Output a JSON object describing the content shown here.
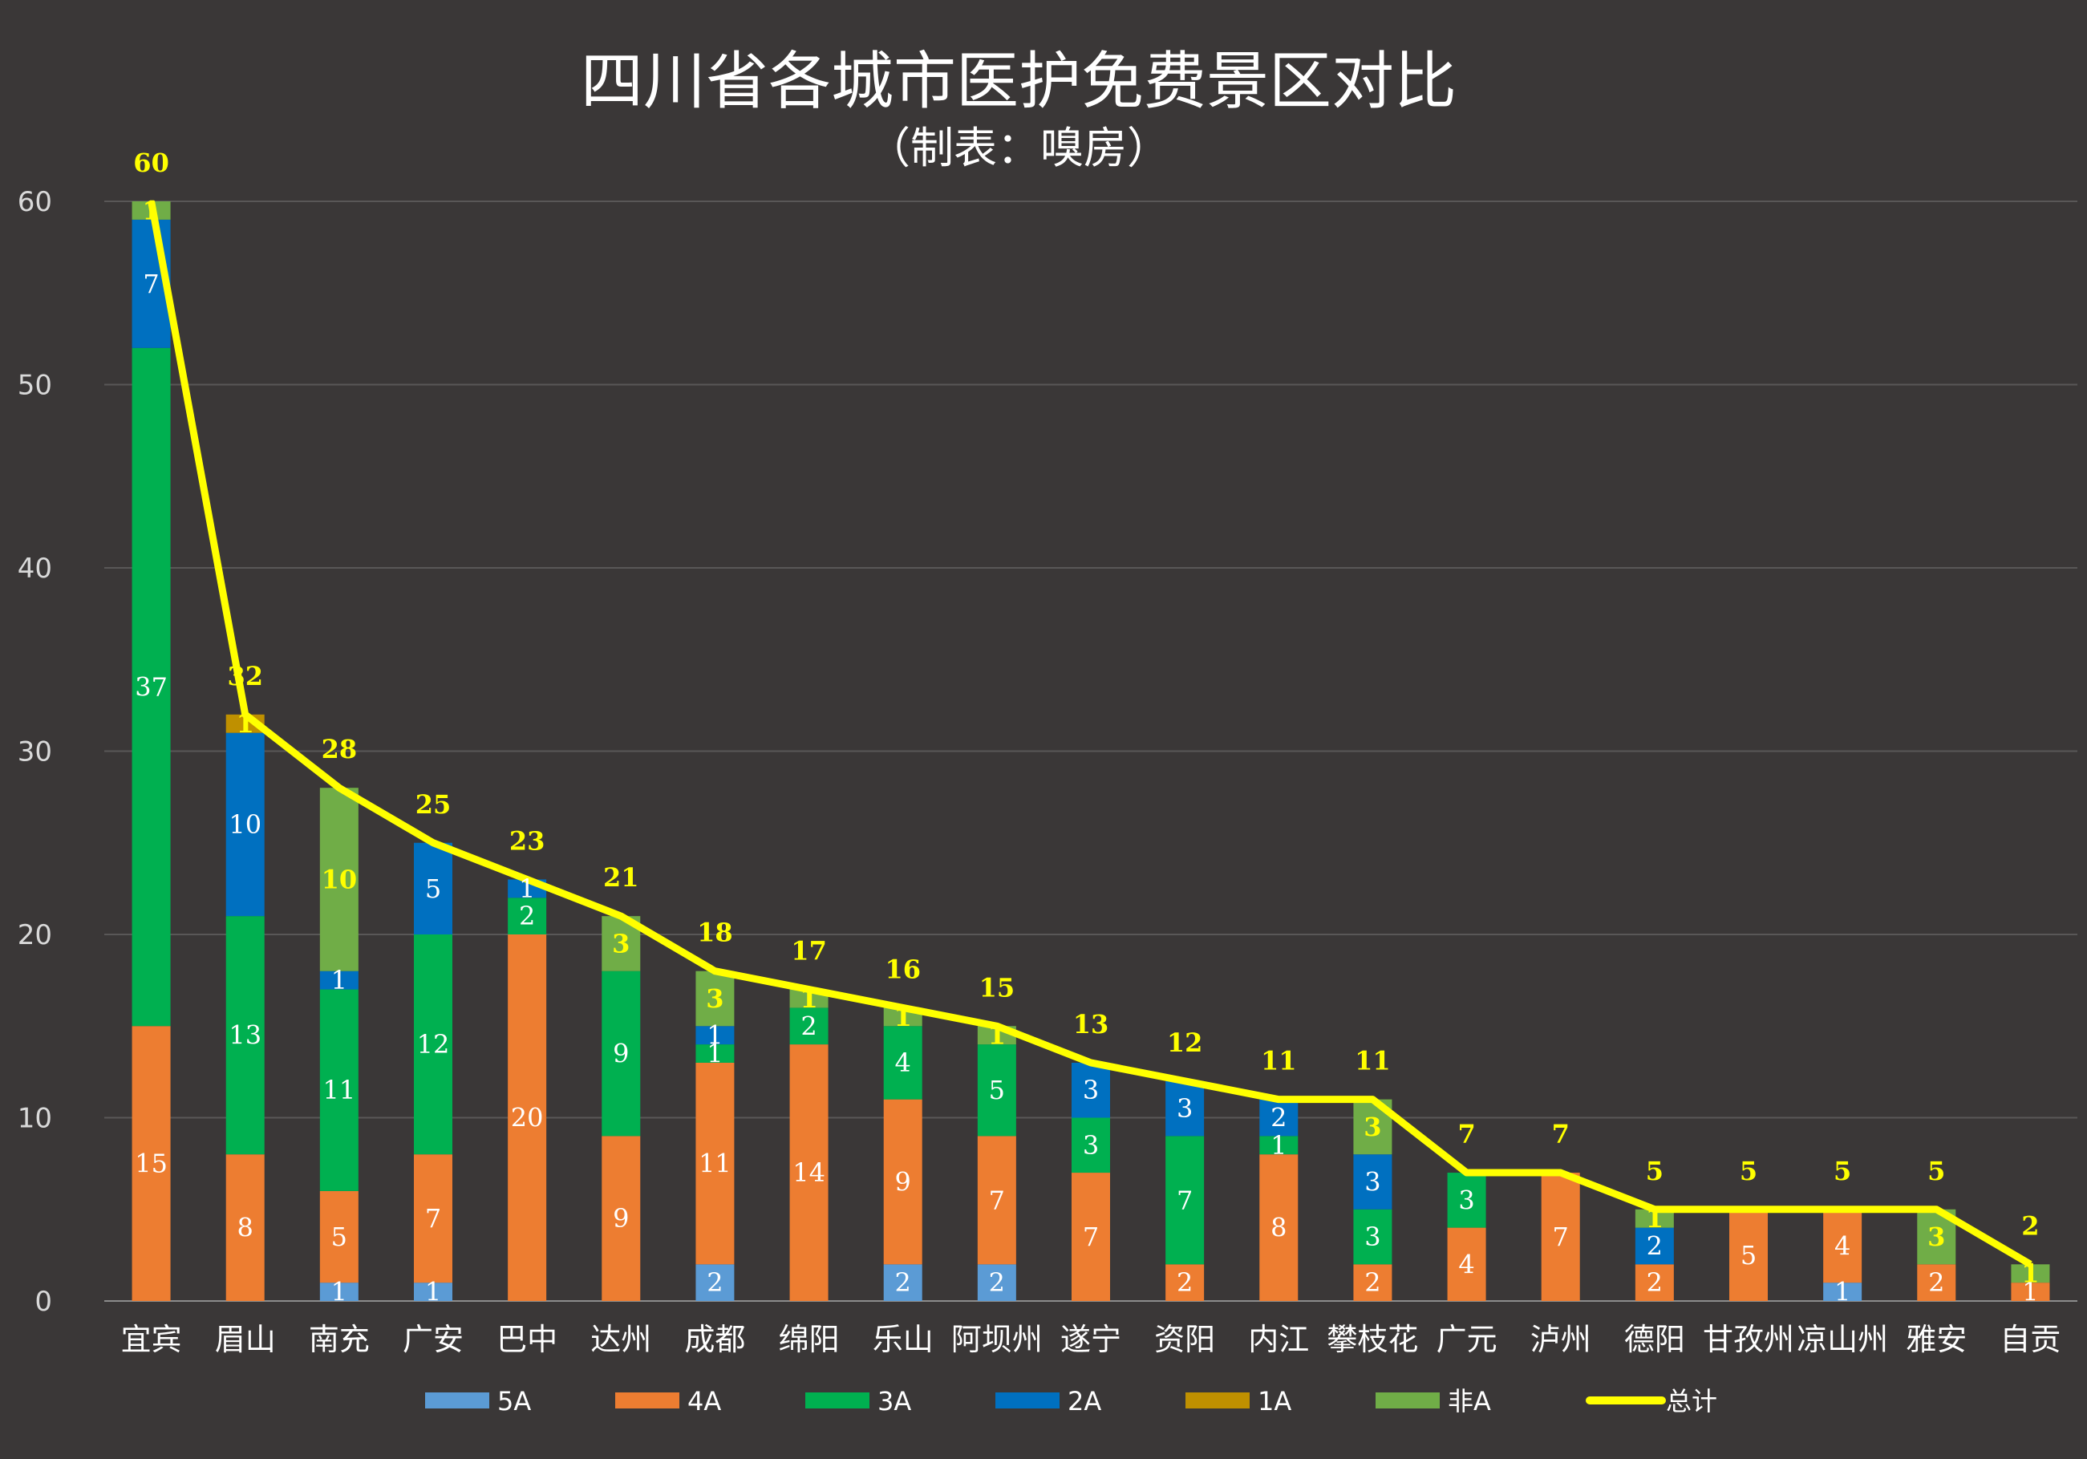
{
  "chart_data": {
    "type": "bar",
    "stacked": true,
    "title": "四川省各城市医护免费景区对比",
    "subtitle": "（制表：嗅房）",
    "categories": [
      "宜宾",
      "眉山",
      "南充",
      "广安",
      "巴中",
      "达州",
      "成都",
      "绵阳",
      "乐山",
      "阿坝州",
      "遂宁",
      "资阳",
      "内江",
      "攀枝花",
      "广元",
      "泸州",
      "德阳",
      "甘孜州",
      "凉山州",
      "雅安",
      "自贡"
    ],
    "ylim": [
      0,
      60
    ],
    "yticks": [
      0,
      10,
      20,
      30,
      40,
      50,
      60
    ],
    "grid": true,
    "legend": "bottom",
    "series": [
      {
        "name": "5A",
        "color": "#5b9bd5",
        "values": [
          0,
          0,
          1,
          1,
          0,
          0,
          2,
          0,
          2,
          2,
          0,
          0,
          0,
          0,
          0,
          0,
          0,
          0,
          1,
          0,
          0
        ]
      },
      {
        "name": "4A",
        "color": "#ed7d31",
        "values": [
          15,
          8,
          5,
          7,
          20,
          9,
          11,
          14,
          9,
          7,
          7,
          2,
          8,
          2,
          4,
          7,
          2,
          5,
          4,
          2,
          1
        ]
      },
      {
        "name": "3A",
        "color": "#00b050",
        "values": [
          37,
          13,
          11,
          12,
          2,
          9,
          1,
          2,
          4,
          5,
          3,
          7,
          1,
          3,
          3,
          0,
          0,
          0,
          0,
          0,
          0
        ]
      },
      {
        "name": "2A",
        "color": "#0070c0",
        "values": [
          7,
          10,
          1,
          5,
          1,
          0,
          1,
          0,
          0,
          0,
          3,
          3,
          2,
          3,
          0,
          0,
          2,
          0,
          0,
          0,
          0
        ]
      },
      {
        "name": "1A",
        "color": "#bf9000",
        "values": [
          0,
          1,
          0,
          0,
          0,
          0,
          0,
          0,
          0,
          0,
          0,
          0,
          0,
          0,
          0,
          0,
          0,
          0,
          0,
          0,
          0
        ]
      },
      {
        "name": "非A",
        "color": "#70ad47",
        "values": [
          1,
          0,
          10,
          0,
          0,
          3,
          3,
          1,
          1,
          1,
          0,
          0,
          0,
          3,
          0,
          0,
          1,
          0,
          0,
          3,
          1
        ]
      }
    ],
    "total": {
      "name": "总计",
      "type": "line",
      "color": "#ffff00",
      "values": [
        60,
        32,
        28,
        25,
        23,
        21,
        18,
        17,
        16,
        15,
        13,
        12,
        11,
        11,
        7,
        7,
        5,
        5,
        5,
        5,
        2
      ]
    }
  }
}
